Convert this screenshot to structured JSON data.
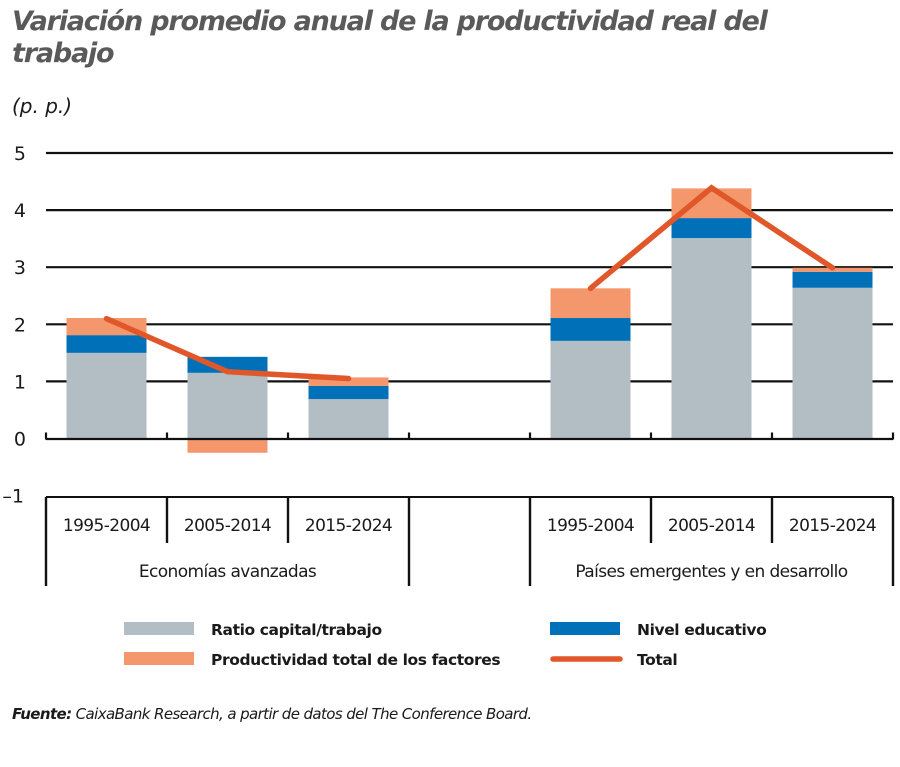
{
  "header": {
    "title": "Variación promedio anual de la productividad real del trabajo",
    "unit": "(p. p.)"
  },
  "source": {
    "label": "Fuente:",
    "text": "CaixaBank Research, a partir de datos del The Conference Board."
  },
  "colors": {
    "capital": "#B3BEC4",
    "education": "#0070B8",
    "tfp": "#F4976C",
    "total": "#E0572A",
    "axis": "#111111"
  },
  "legend": [
    {
      "key": "capital",
      "label": "Ratio capital/trabajo",
      "kind": "bar"
    },
    {
      "key": "education",
      "label": "Nivel educativo",
      "kind": "bar"
    },
    {
      "key": "tfp",
      "label": "Productividad total de los factores",
      "kind": "bar"
    },
    {
      "key": "total",
      "label": "Total",
      "kind": "line"
    }
  ],
  "chart_data": {
    "type": "bar",
    "stacked": true,
    "title": "Variación promedio anual de la productividad real del trabajo",
    "ylabel": "(p. p.)",
    "xlabel": "",
    "ylim": [
      -1,
      5
    ],
    "yticks": [
      -1,
      0,
      1,
      2,
      3,
      4,
      5
    ],
    "grid": true,
    "legend_position": "bottom",
    "groups": [
      {
        "name": "Economías avanzadas",
        "categories": [
          "1995-2004",
          "2005-2014",
          "2015-2024"
        ]
      },
      {
        "name": "Países emergentes y en desarrollo",
        "categories": [
          "1995-2004",
          "2005-2014",
          "2015-2024"
        ]
      }
    ],
    "categories": [
      "Economías avanzadas 1995-2004",
      "Economías avanzadas 2005-2014",
      "Economías avanzadas 2015-2024",
      "Países emergentes y en desarrollo 1995-2004",
      "Países emergentes y en desarrollo 2005-2014",
      "Países emergentes y en desarrollo 2015-2024"
    ],
    "series": [
      {
        "name": "Ratio capital/trabajo",
        "type": "bar",
        "values": [
          1.5,
          1.15,
          0.69,
          1.71,
          3.51,
          2.64
        ]
      },
      {
        "name": "Nivel educativo",
        "type": "bar",
        "values": [
          0.31,
          0.28,
          0.23,
          0.4,
          0.35,
          0.28
        ]
      },
      {
        "name": "Productividad total de los factores",
        "type": "bar",
        "values": [
          0.3,
          -0.25,
          0.15,
          0.52,
          0.52,
          0.07
        ]
      },
      {
        "name": "Total",
        "type": "line",
        "values": [
          2.1,
          1.17,
          1.05,
          2.63,
          4.39,
          2.99
        ]
      }
    ]
  }
}
